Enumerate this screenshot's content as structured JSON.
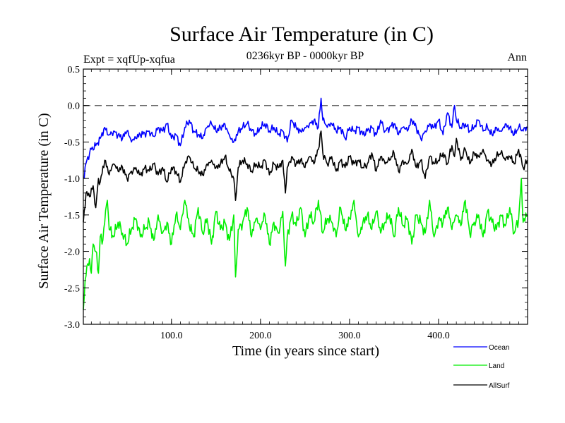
{
  "chart_data": {
    "type": "line",
    "title": "Surface Air Temperature (in C)",
    "subtitle": "0236kyr BP - 0000kyr BP",
    "experiment": "Expt = xqfUp-xqfua",
    "season": "Ann",
    "xlabel": "Time (in years since start)",
    "ylabel": "Surface Air Temperature (in C)",
    "xlim": [
      1,
      500
    ],
    "ylim": [
      -3.0,
      0.5
    ],
    "xticks": [
      100,
      200,
      300,
      400
    ],
    "xtick_labels": [
      "100.0",
      "200.0",
      "300.0",
      "400.0"
    ],
    "yticks": [
      -3.0,
      -2.5,
      -2.0,
      -1.5,
      -1.0,
      -0.5,
      0.0,
      0.5
    ],
    "ytick_labels": [
      "-3.0",
      "-2.5",
      "-2.0",
      "-1.5",
      "-1.0",
      "-0.5",
      "0.0",
      "0.5"
    ],
    "reference_line": 0.0,
    "series": [
      {
        "name": "Ocean",
        "color": "#0000ff",
        "x": [
          1,
          5,
          10,
          15,
          20,
          25,
          30,
          35,
          40,
          45,
          50,
          55,
          60,
          65,
          70,
          75,
          80,
          85,
          90,
          95,
          100,
          105,
          110,
          115,
          120,
          125,
          130,
          135,
          140,
          145,
          150,
          155,
          160,
          165,
          170,
          175,
          180,
          185,
          190,
          195,
          200,
          205,
          210,
          215,
          220,
          225,
          230,
          235,
          240,
          245,
          250,
          255,
          260,
          265,
          268,
          270,
          275,
          280,
          285,
          290,
          295,
          300,
          305,
          310,
          315,
          320,
          325,
          330,
          335,
          340,
          345,
          350,
          355,
          360,
          365,
          370,
          375,
          380,
          385,
          390,
          395,
          400,
          405,
          410,
          415,
          418,
          420,
          425,
          430,
          435,
          440,
          445,
          450,
          455,
          460,
          465,
          470,
          475,
          480,
          485,
          490,
          495,
          500
        ],
        "values": [
          -1.0,
          -0.75,
          -0.6,
          -0.55,
          -0.45,
          -0.3,
          -0.4,
          -0.35,
          -0.4,
          -0.45,
          -0.35,
          -0.5,
          -0.45,
          -0.4,
          -0.38,
          -0.35,
          -0.42,
          -0.3,
          -0.35,
          -0.25,
          -0.45,
          -0.4,
          -0.55,
          -0.3,
          -0.2,
          -0.35,
          -0.4,
          -0.45,
          -0.3,
          -0.25,
          -0.35,
          -0.3,
          -0.25,
          -0.4,
          -0.5,
          -0.35,
          -0.3,
          -0.25,
          -0.35,
          -0.4,
          -0.3,
          -0.25,
          -0.35,
          -0.3,
          -0.4,
          -0.35,
          -0.5,
          -0.2,
          -0.3,
          -0.35,
          -0.3,
          -0.25,
          -0.2,
          -0.3,
          0.1,
          -0.2,
          -0.3,
          -0.25,
          -0.35,
          -0.3,
          -0.45,
          -0.3,
          -0.35,
          -0.3,
          -0.4,
          -0.35,
          -0.3,
          -0.4,
          -0.2,
          -0.35,
          -0.3,
          -0.25,
          -0.4,
          -0.3,
          -0.35,
          -0.2,
          -0.3,
          -0.45,
          -0.35,
          -0.25,
          -0.3,
          -0.2,
          -0.4,
          -0.1,
          -0.3,
          0.0,
          -0.2,
          -0.3,
          -0.25,
          -0.35,
          -0.3,
          -0.2,
          -0.35,
          -0.3,
          -0.4,
          -0.3,
          -0.35,
          -0.25,
          -0.3,
          -0.4,
          -0.3,
          -0.35,
          -0.3
        ]
      },
      {
        "name": "Land",
        "color": "#00ee00",
        "x": [
          1,
          3,
          5,
          8,
          10,
          12,
          15,
          18,
          20,
          22,
          25,
          28,
          30,
          35,
          40,
          45,
          50,
          55,
          60,
          65,
          70,
          75,
          80,
          85,
          90,
          95,
          100,
          105,
          110,
          115,
          120,
          125,
          130,
          135,
          140,
          145,
          150,
          155,
          160,
          165,
          170,
          172,
          175,
          180,
          185,
          190,
          195,
          200,
          205,
          210,
          215,
          220,
          225,
          228,
          230,
          235,
          240,
          245,
          250,
          255,
          260,
          265,
          270,
          275,
          280,
          285,
          290,
          295,
          300,
          305,
          310,
          315,
          320,
          325,
          330,
          335,
          340,
          345,
          350,
          355,
          360,
          365,
          370,
          375,
          380,
          385,
          390,
          395,
          400,
          405,
          410,
          415,
          420,
          425,
          430,
          435,
          440,
          445,
          450,
          455,
          460,
          465,
          470,
          475,
          480,
          485,
          490,
          493,
          495,
          500
        ],
        "values": [
          -2.8,
          -2.4,
          -2.2,
          -2.1,
          -2.3,
          -1.9,
          -2.0,
          -2.3,
          -1.8,
          -1.9,
          -1.6,
          -1.3,
          -1.7,
          -1.8,
          -1.6,
          -1.75,
          -1.9,
          -1.7,
          -1.55,
          -1.8,
          -1.7,
          -1.6,
          -1.85,
          -1.5,
          -1.75,
          -1.6,
          -1.9,
          -1.5,
          -1.7,
          -1.3,
          -1.65,
          -1.8,
          -1.4,
          -1.75,
          -1.55,
          -1.9,
          -1.45,
          -1.7,
          -1.6,
          -1.85,
          -1.5,
          -2.35,
          -1.7,
          -1.6,
          -1.4,
          -1.8,
          -1.55,
          -1.7,
          -1.5,
          -1.9,
          -1.6,
          -1.75,
          -1.45,
          -2.2,
          -1.8,
          -1.5,
          -1.65,
          -1.4,
          -1.8,
          -1.5,
          -1.6,
          -1.3,
          -1.75,
          -1.55,
          -1.6,
          -1.8,
          -1.4,
          -1.7,
          -1.55,
          -1.3,
          -1.8,
          -1.6,
          -1.5,
          -1.7,
          -1.45,
          -1.75,
          -1.6,
          -1.5,
          -1.8,
          -1.4,
          -1.65,
          -1.55,
          -1.9,
          -1.5,
          -1.6,
          -1.75,
          -1.3,
          -1.8,
          -1.55,
          -1.6,
          -1.4,
          -1.7,
          -1.5,
          -1.65,
          -1.3,
          -1.75,
          -1.6,
          -1.5,
          -1.8,
          -1.45,
          -1.6,
          -1.7,
          -1.5,
          -1.65,
          -1.4,
          -1.75,
          -1.55,
          -1.0,
          -1.6,
          -1.5
        ]
      },
      {
        "name": "AllSurf",
        "color": "#000000",
        "x": [
          1,
          4,
          8,
          12,
          15,
          18,
          20,
          25,
          30,
          35,
          40,
          45,
          50,
          55,
          60,
          65,
          70,
          75,
          80,
          85,
          90,
          95,
          100,
          105,
          110,
          115,
          120,
          125,
          130,
          135,
          140,
          145,
          150,
          155,
          160,
          165,
          170,
          172,
          175,
          180,
          185,
          190,
          195,
          200,
          205,
          210,
          215,
          220,
          225,
          228,
          230,
          235,
          240,
          245,
          250,
          255,
          260,
          265,
          268,
          270,
          275,
          280,
          285,
          290,
          295,
          300,
          305,
          310,
          315,
          320,
          325,
          330,
          335,
          340,
          345,
          350,
          355,
          360,
          365,
          370,
          375,
          380,
          385,
          390,
          395,
          400,
          405,
          410,
          415,
          418,
          420,
          425,
          430,
          435,
          440,
          445,
          450,
          455,
          460,
          465,
          470,
          475,
          480,
          485,
          490,
          495,
          500
        ],
        "values": [
          -1.6,
          -1.2,
          -1.25,
          -1.1,
          -1.4,
          -1.0,
          -1.05,
          -0.75,
          -0.95,
          -0.8,
          -0.9,
          -0.85,
          -1.0,
          -0.9,
          -0.85,
          -0.95,
          -0.85,
          -0.9,
          -0.8,
          -0.95,
          -0.85,
          -1.05,
          -0.85,
          -0.9,
          -1.05,
          -0.8,
          -0.7,
          -0.85,
          -0.9,
          -0.95,
          -0.8,
          -0.75,
          -0.85,
          -0.8,
          -0.7,
          -0.9,
          -1.0,
          -1.3,
          -0.85,
          -0.75,
          -0.8,
          -0.9,
          -0.8,
          -0.85,
          -0.75,
          -0.95,
          -0.8,
          -0.85,
          -0.75,
          -1.2,
          -0.85,
          -0.7,
          -0.8,
          -0.75,
          -0.85,
          -0.7,
          -0.8,
          -0.6,
          -0.35,
          -0.65,
          -0.8,
          -0.7,
          -0.9,
          -0.75,
          -0.85,
          -0.7,
          -0.8,
          -0.75,
          -0.85,
          -0.8,
          -0.65,
          -0.9,
          -0.7,
          -0.8,
          -0.75,
          -0.65,
          -0.9,
          -0.75,
          -0.8,
          -0.6,
          -0.85,
          -0.75,
          -1.0,
          -0.7,
          -0.8,
          -0.75,
          -0.65,
          -0.8,
          -0.55,
          -0.7,
          -0.45,
          -0.75,
          -0.6,
          -0.8,
          -0.65,
          -0.7,
          -0.6,
          -0.75,
          -0.8,
          -0.7,
          -0.65,
          -0.75,
          -0.7,
          -0.8,
          -0.6,
          -0.85,
          -0.75
        ]
      }
    ],
    "legend": [
      "Ocean",
      "Land",
      "AllSurf"
    ],
    "legend_position": "bottom-right"
  }
}
